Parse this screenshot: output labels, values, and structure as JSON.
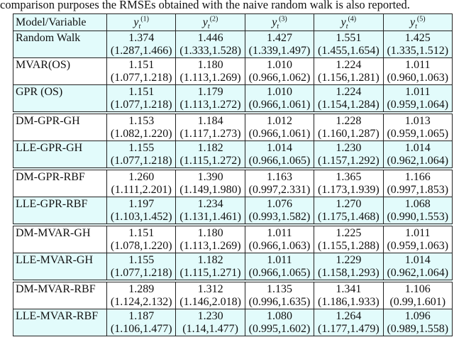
{
  "caption": "comparison purposes the RMSEs obtained with the naive random walk is also reported.",
  "table": {
    "header": {
      "first": "Model/Variable",
      "columns": [
        {
          "base": "y",
          "sub": "t",
          "sup": "(1)"
        },
        {
          "base": "y",
          "sub": "t",
          "sup": "(2)"
        },
        {
          "base": "y",
          "sub": "t",
          "sup": "(3)"
        },
        {
          "base": "y",
          "sub": "t",
          "sup": "(4)"
        },
        {
          "base": "y",
          "sub": "t",
          "sup": "(5)"
        }
      ]
    },
    "groups": [
      {
        "rows": [
          {
            "model": "Random Walk",
            "highlight": true,
            "cells": [
              {
                "value": "1.374",
                "ci": "(1.287,1.466)"
              },
              {
                "value": "1.446",
                "ci": "(1.333,1.528)"
              },
              {
                "value": "1.427",
                "ci": "(1.339,1.497)"
              },
              {
                "value": "1.551",
                "ci": "(1.455,1.654)"
              },
              {
                "value": "1.425",
                "ci": "(1.335,1.512)"
              }
            ]
          },
          {
            "model": "MVAR(OS)",
            "highlight": false,
            "cells": [
              {
                "value": "1.151",
                "ci": "(1.077,1.218)"
              },
              {
                "value": "1.180",
                "ci": "(1.113,1.269)"
              },
              {
                "value": "1.010",
                "ci": "(0.966,1.062)"
              },
              {
                "value": "1.224",
                "ci": "(1.156,1.281)"
              },
              {
                "value": "1.011",
                "ci": "(0.960,1.063)"
              }
            ]
          },
          {
            "model": "GPR (OS)",
            "highlight": true,
            "cells": [
              {
                "value": "1.151",
                "ci": "(1.077,1.218)"
              },
              {
                "value": "1.179",
                "ci": "(1.113,1.272)"
              },
              {
                "value": "1.010",
                "ci": "(0.966,1.061)"
              },
              {
                "value": "1.224",
                "ci": "(1.154,1.284)"
              },
              {
                "value": "1.011",
                "ci": "(0.959,1.064)"
              }
            ]
          }
        ]
      },
      {
        "rows": [
          {
            "model": "DM-GPR-GH",
            "highlight": false,
            "cells": [
              {
                "value": "1.153",
                "ci": "(1.082,1.220)"
              },
              {
                "value": "1.184",
                "ci": "(1.117,1.273)"
              },
              {
                "value": "1.012",
                "ci": "(0.966,1.061)"
              },
              {
                "value": "1.228",
                "ci": "(1.160,1.287)"
              },
              {
                "value": "1.013",
                "ci": "(0.959,1.065)"
              }
            ]
          },
          {
            "model": "LLE-GPR-GH",
            "highlight": true,
            "cells": [
              {
                "value": "1.155",
                "ci": "(1.077,1.218)"
              },
              {
                "value": "1.182",
                "ci": "(1.115,1.272)"
              },
              {
                "value": "1.014",
                "ci": "(0.966,1.065)"
              },
              {
                "value": "1.230",
                "ci": "(1.157,1.292)"
              },
              {
                "value": "1.014",
                "ci": "(0.962,1.064)"
              }
            ]
          }
        ]
      },
      {
        "rows": [
          {
            "model": "DM-GPR-RBF",
            "highlight": false,
            "cells": [
              {
                "value": "1.260",
                "ci": "(1.111,2.201)"
              },
              {
                "value": "1.390",
                "ci": "(1.149,1.980)"
              },
              {
                "value": "1.163",
                "ci": "(0.997,2.331)"
              },
              {
                "value": "1.365",
                "ci": "(1.173,1.939)"
              },
              {
                "value": "1.166",
                "ci": "(0.997,1.853)"
              }
            ]
          },
          {
            "model": "LLE-GPR-RBF",
            "highlight": true,
            "cells": [
              {
                "value": "1.197",
                "ci": "(1.103,1.452)"
              },
              {
                "value": "1.234",
                "ci": "(1.131,1.461)"
              },
              {
                "value": "1.076",
                "ci": "(0.993,1.582)"
              },
              {
                "value": "1.270",
                "ci": "(1.175,1.468)"
              },
              {
                "value": "1.068",
                "ci": "(0.990,1.553)"
              }
            ]
          }
        ]
      },
      {
        "rows": [
          {
            "model": "DM-MVAR-GH",
            "highlight": false,
            "cells": [
              {
                "value": "1.151",
                "ci": "(1.078,1.220)"
              },
              {
                "value": "1.180",
                "ci": "(1.113,1.269)"
              },
              {
                "value": "1.011",
                "ci": "(0.966,1.063)"
              },
              {
                "value": "1.225",
                "ci": "(1.155,1.288)"
              },
              {
                "value": "1.011",
                "ci": "(0.959,1.063)"
              }
            ]
          },
          {
            "model": "LLE-MVAR-GH",
            "highlight": true,
            "cells": [
              {
                "value": "1.155",
                "ci": "(1.077,1.218)"
              },
              {
                "value": "1.182",
                "ci": "(1.115,1.271)"
              },
              {
                "value": "1.011",
                "ci": "(0.966,1.065)"
              },
              {
                "value": "1.229",
                "ci": "(1.158,1.293)"
              },
              {
                "value": "1.014",
                "ci": "(0.962,1.064)"
              }
            ]
          }
        ]
      },
      {
        "rows": [
          {
            "model": "DM-MVAR-RBF",
            "highlight": false,
            "cells": [
              {
                "value": "1.289",
                "ci": "(1.124,2.132)"
              },
              {
                "value": "1.312",
                "ci": "(1.146,2.018)"
              },
              {
                "value": "1.135",
                "ci": "(0.996,1.635)"
              },
              {
                "value": "1.341",
                "ci": "(1.186,1.933)"
              },
              {
                "value": "1.106",
                "ci": "(0.99,1.601)"
              }
            ]
          },
          {
            "model": "LLE-MVAR-RBF",
            "highlight": true,
            "cells": [
              {
                "value": "1.187",
                "ci": "(1.106,1.477)"
              },
              {
                "value": "1.230",
                "ci": "(1.14,1.477)"
              },
              {
                "value": "1.080",
                "ci": "(0.995,1.602)"
              },
              {
                "value": "1.264",
                "ci": "(1.177,1.479)"
              },
              {
                "value": "1.096",
                "ci": "(0.989,1.558)"
              }
            ]
          }
        ]
      }
    ]
  }
}
